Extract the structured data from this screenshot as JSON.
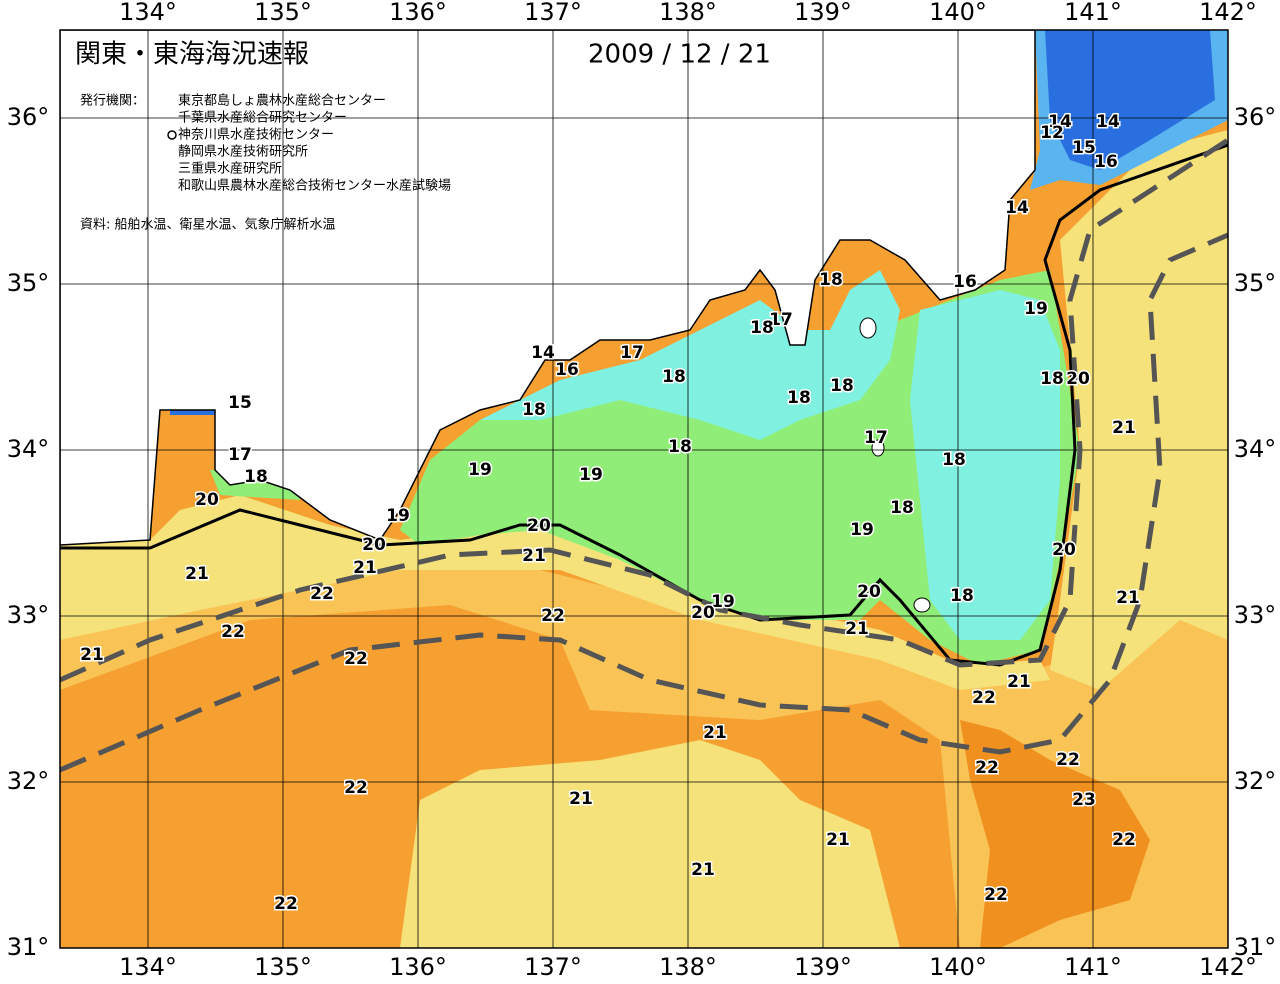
{
  "map": {
    "title": "関東・東海海況速報",
    "date": "2009 / 12 / 21",
    "issuer_label": "発行機関：",
    "issuers": [
      "東京都島しょ農林水産総合センター",
      "千葉県水産総合研究センター",
      "神奈川県水産技術センター",
      "静岡県水産技術研究所",
      "三重県水産研究所",
      "和歌山県農林水産総合技術センター水産試験場"
    ],
    "source": "資料: 船舶水温、衛星水温、気象庁解析水温",
    "lon_ticks": [
      {
        "value": 134,
        "label": "134°"
      },
      {
        "value": 135,
        "label": "135°"
      },
      {
        "value": 136,
        "label": "136°"
      },
      {
        "value": 137,
        "label": "137°"
      },
      {
        "value": 138,
        "label": "138°"
      },
      {
        "value": 139,
        "label": "139°"
      },
      {
        "value": 140,
        "label": "140°"
      },
      {
        "value": 141,
        "label": "141°"
      },
      {
        "value": 142,
        "label": "142°"
      }
    ],
    "lat_ticks": [
      {
        "value": 31,
        "label": "31°"
      },
      {
        "value": 32,
        "label": "32°"
      },
      {
        "value": 33,
        "label": "33°"
      },
      {
        "value": 34,
        "label": "34°"
      },
      {
        "value": 35,
        "label": "35°"
      },
      {
        "value": 36,
        "label": "36°"
      }
    ],
    "contour_labels": [
      14,
      14,
      12,
      15,
      16,
      14,
      16,
      18,
      19,
      17,
      18,
      14,
      17,
      16,
      18,
      18,
      20,
      18,
      18,
      15,
      18,
      17,
      21,
      18,
      17,
      18,
      19,
      19,
      18,
      20,
      18,
      19,
      20,
      19,
      20,
      20,
      21,
      21,
      21,
      22,
      20,
      18,
      21,
      19,
      20,
      22,
      21,
      22,
      21,
      22,
      21,
      22,
      21,
      22,
      22,
      22,
      21,
      23,
      21,
      22,
      21,
      22,
      22
    ]
  }
}
